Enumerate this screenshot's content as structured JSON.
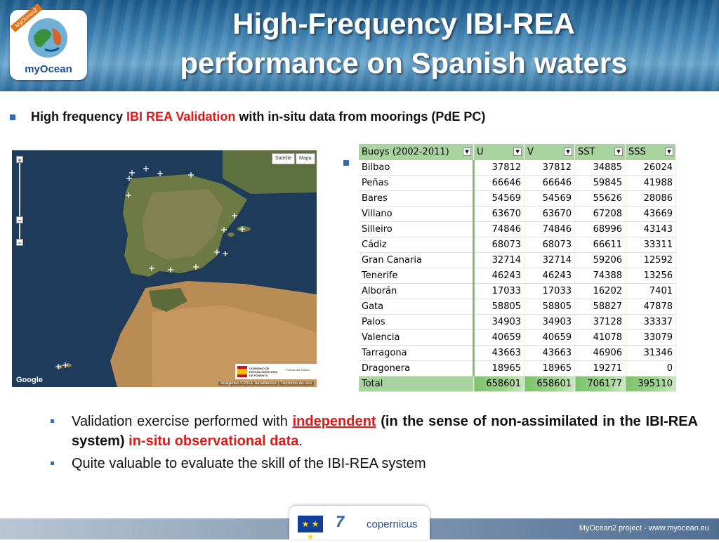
{
  "header": {
    "title_line1": "High-Frequency IBI-REA",
    "title_line2": "performance on Spanish waters",
    "logo_text": "myOcean",
    "logo_ribbon": "MyOcean2"
  },
  "intro": {
    "text_before": "High frequency ",
    "highlight": "IBI REA Validation",
    "text_after": " with in-situ data from moorings (PdE PC)"
  },
  "map": {
    "satellite_label": "Satélite",
    "map_label": "Mapa",
    "google_label": "Google",
    "credit": "Imágenes ©2014 TerraMetrics  |  Términos de uso",
    "gob_title": "GOBIERNO DE ESPAÑA  MINISTERIO DE FOMENTO",
    "gob_subtitle": "Puertos del Estado"
  },
  "table": {
    "headers": [
      "Buoys (2002-2011)",
      "U",
      "V",
      "SST",
      "SSS"
    ],
    "rows": [
      {
        "name": "Bilbao",
        "u": "37812",
        "v": "37812",
        "sst": "34885",
        "sss": "26024"
      },
      {
        "name": "Peñas",
        "u": "66646",
        "v": "66646",
        "sst": "59845",
        "sss": "41988"
      },
      {
        "name": "Bares",
        "u": "54569",
        "v": "54569",
        "sst": "55626",
        "sss": "28086"
      },
      {
        "name": "Villano",
        "u": "63670",
        "v": "63670",
        "sst": "67208",
        "sss": "43669"
      },
      {
        "name": "Silleiro",
        "u": "74846",
        "v": "74846",
        "sst": "68996",
        "sss": "43143"
      },
      {
        "name": "Cádiz",
        "u": "68073",
        "v": "68073",
        "sst": "66611",
        "sss": "33311"
      },
      {
        "name": "Gran Canaria",
        "u": "32714",
        "v": "32714",
        "sst": "59206",
        "sss": "12592"
      },
      {
        "name": "Tenerife",
        "u": "46243",
        "v": "46243",
        "sst": "74388",
        "sss": "13256"
      },
      {
        "name": "Alborán",
        "u": "17033",
        "v": "17033",
        "sst": "16202",
        "sss": "7401"
      },
      {
        "name": "Gata",
        "u": "58805",
        "v": "58805",
        "sst": "58827",
        "sss": "47878"
      },
      {
        "name": "Palos",
        "u": "34903",
        "v": "34903",
        "sst": "37128",
        "sss": "33337"
      },
      {
        "name": "Valencia",
        "u": "40659",
        "v": "40659",
        "sst": "41078",
        "sss": "33079"
      },
      {
        "name": "Tarragona",
        "u": "43663",
        "v": "43663",
        "sst": "46906",
        "sss": "31346"
      },
      {
        "name": "Dragonera",
        "u": "18965",
        "v": "18965",
        "sst": "19271",
        "sss": "0"
      }
    ],
    "total": {
      "name": "Total",
      "u": "658601",
      "v": "658601",
      "sst": "706177",
      "sss": "395110"
    }
  },
  "bullets": {
    "b1_part1": "Validation exercise performed with ",
    "b1_part2": "independent",
    "b1_part3": " (in the sense of non-assimilated in the IBI-REA system) ",
    "b1_part4": "in-situ observational data",
    "b1_part5": ".",
    "b2": "Quite valuable to evaluate the skill of the IBI-REA system"
  },
  "footer": {
    "site": "MyOcean2 project - www.myocean.eu",
    "eu_stars": "★ ★ ★",
    "fp7": "7",
    "copernicus": "copernicus"
  }
}
